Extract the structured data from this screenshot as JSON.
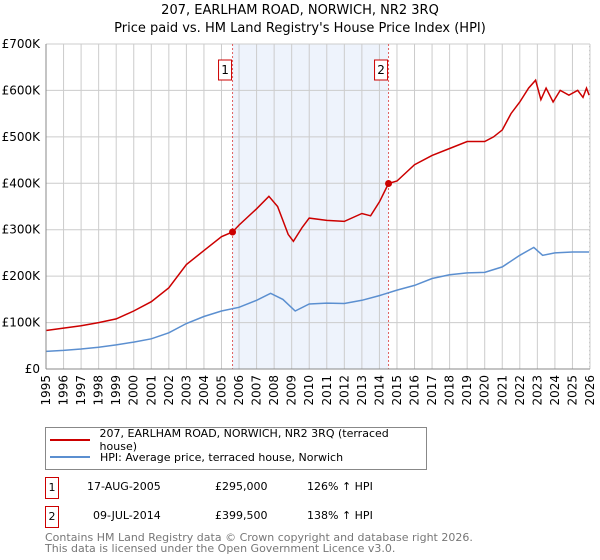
{
  "title": "207, EARLHAM ROAD, NORWICH, NR2 3RQ",
  "subtitle": "Price paid vs. HM Land Registry's House Price Index (HPI)",
  "colors": {
    "red": "#cc0000",
    "blue": "#5b8fd0",
    "shade": "#eef3fc"
  },
  "chart_data": {
    "type": "line",
    "title": "207, EARLHAM ROAD, NORWICH, NR2 3RQ",
    "xlim": [
      1995,
      2026
    ],
    "ylim": [
      0,
      700000
    ],
    "yticks": [
      0,
      100000,
      200000,
      300000,
      400000,
      500000,
      600000,
      700000
    ],
    "ytick_labels": [
      "£0",
      "£100K",
      "£200K",
      "£300K",
      "£400K",
      "£500K",
      "£600K",
      "£700K"
    ],
    "xticks": [
      "1995",
      "1996",
      "1997",
      "1998",
      "1999",
      "2000",
      "2001",
      "2002",
      "2003",
      "2004",
      "2005",
      "2006",
      "2007",
      "2008",
      "2009",
      "2010",
      "2011",
      "2012",
      "2013",
      "2014",
      "2015",
      "2016",
      "2017",
      "2018",
      "2019",
      "2020",
      "2021",
      "2022",
      "2023",
      "2024",
      "2025",
      "2026"
    ],
    "grid": true,
    "series": [
      {
        "name": "207, EARLHAM ROAD, NORWICH, NR2 3RQ (terraced house)",
        "color": "#cc0000",
        "x": [
          1995,
          1996,
          1997,
          1998,
          1999,
          2000,
          2001,
          2002,
          2003,
          2004,
          2005,
          2005.63,
          2006,
          2007,
          2007.7,
          2008.2,
          2008.8,
          2009.1,
          2009.6,
          2010,
          2011,
          2012,
          2013,
          2013.5,
          2014,
          2014.52,
          2015,
          2016,
          2017,
          2018,
          2019,
          2020,
          2020.5,
          2021,
          2021.5,
          2022,
          2022.5,
          2022.9,
          2023.2,
          2023.5,
          2023.9,
          2024.3,
          2024.8,
          2025.3,
          2025.6,
          2025.8,
          2025.95
        ],
        "y": [
          83000,
          88000,
          93000,
          100000,
          108000,
          125000,
          145000,
          175000,
          225000,
          255000,
          285000,
          295000,
          310000,
          345000,
          372000,
          350000,
          290000,
          275000,
          305000,
          325000,
          320000,
          318000,
          335000,
          330000,
          360000,
          399500,
          405000,
          440000,
          460000,
          475000,
          490000,
          490000,
          500000,
          515000,
          550000,
          575000,
          605000,
          622000,
          580000,
          605000,
          575000,
          600000,
          590000,
          600000,
          585000,
          605000,
          590000
        ]
      },
      {
        "name": "HPI: Average price, terraced house, Norwich",
        "color": "#5b8fd0",
        "x": [
          1995,
          1996,
          1997,
          1998,
          1999,
          2000,
          2001,
          2002,
          2003,
          2004,
          2005,
          2006,
          2007,
          2007.8,
          2008.5,
          2009.2,
          2010,
          2011,
          2012,
          2013,
          2014,
          2015,
          2016,
          2017,
          2018,
          2019,
          2020,
          2021,
          2022,
          2022.8,
          2023.3,
          2024,
          2025,
          2025.95
        ],
        "y": [
          38000,
          40000,
          43000,
          47000,
          52000,
          58000,
          65000,
          78000,
          98000,
          113000,
          125000,
          133000,
          148000,
          163000,
          150000,
          125000,
          140000,
          142000,
          141000,
          148000,
          158000,
          170000,
          180000,
          195000,
          203000,
          207000,
          208000,
          220000,
          245000,
          262000,
          245000,
          250000,
          252000,
          252000
        ]
      }
    ],
    "annotations": [
      {
        "label": "1",
        "x": 2005.63,
        "y": 295000
      },
      {
        "label": "2",
        "x": 2014.52,
        "y": 399500
      }
    ]
  },
  "legend": {
    "red_label": "207, EARLHAM ROAD, NORWICH, NR2 3RQ (terraced house)",
    "blue_label": "HPI: Average price, terraced house, Norwich"
  },
  "transactions": [
    {
      "num": "1",
      "date": "17-AUG-2005",
      "price": "£295,000",
      "hpi": "126% ↑ HPI"
    },
    {
      "num": "2",
      "date": "09-JUL-2014",
      "price": "£399,500",
      "hpi": "138% ↑ HPI"
    }
  ],
  "footer": {
    "line1": "Contains HM Land Registry data © Crown copyright and database right 2026.",
    "line2": "This data is licensed under the Open Government Licence v3.0."
  }
}
